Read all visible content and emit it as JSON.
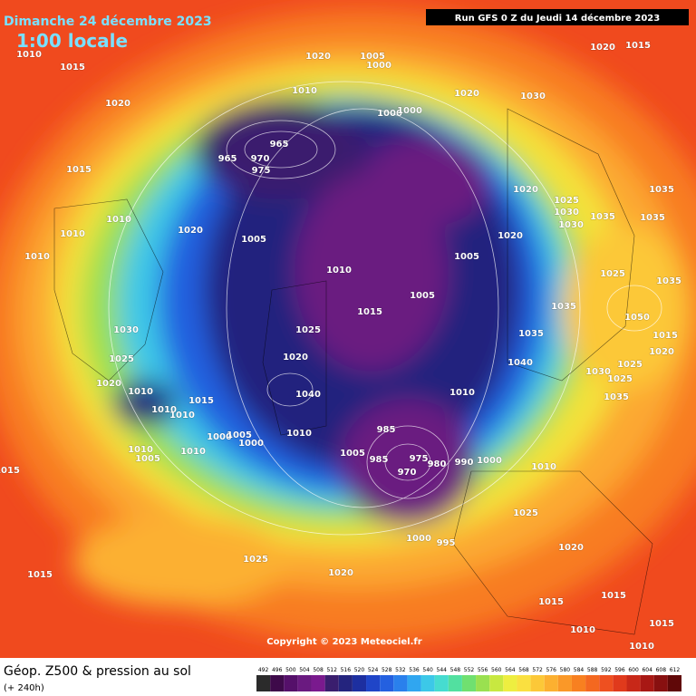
{
  "header": {
    "date": "Dimanche 24 décembre 2023",
    "time": "1:00 locale",
    "run": "Run GFS 0 Z du Jeudi 14 décembre 2023"
  },
  "footer": {
    "title": "Géop. Z500 & pression au sol",
    "lead": "(+ 240h)",
    "copyright": "Copyright © 2023 Meteociel.fr"
  },
  "colorbar": {
    "ticks": [
      492,
      496,
      500,
      504,
      508,
      512,
      516,
      520,
      524,
      528,
      532,
      536,
      540,
      544,
      548,
      552,
      556,
      560,
      564,
      568,
      572,
      576,
      580,
      584,
      588,
      592,
      596,
      600,
      604,
      608,
      612
    ],
    "colors": [
      "#2b2b2b",
      "#3e0a4a",
      "#55106a",
      "#6a1a80",
      "#7a1a8e",
      "#3a1e6e",
      "#24247e",
      "#1d2fa0",
      "#1f45c8",
      "#2460e0",
      "#2a80ec",
      "#30a6f0",
      "#3cc8e8",
      "#46dcd0",
      "#52e0a0",
      "#70e070",
      "#9ae050",
      "#c8e840",
      "#eeee40",
      "#fae040",
      "#fcc838",
      "#fcb030",
      "#fa9828",
      "#f88020",
      "#f46820",
      "#ee5020",
      "#e03a1c",
      "#c82818",
      "#a81814",
      "#881010",
      "#600808"
    ]
  },
  "isobar_labels": [
    "1010",
    "1015",
    "1020",
    "1020",
    "1005",
    "1000",
    "1020",
    "1015",
    "1010",
    "1020",
    "1030",
    "1000",
    "1000",
    "965",
    "965",
    "970",
    "975",
    "1015",
    "1010",
    "1010",
    "1020",
    "1005",
    "1010",
    "1010",
    "1005",
    "1020",
    "1020",
    "1025",
    "1030",
    "1030",
    "1035",
    "1035",
    "1035",
    "1025",
    "1035",
    "1050",
    "1015",
    "1020",
    "1005",
    "1015",
    "1025",
    "1020",
    "1030",
    "1025",
    "1020",
    "1010",
    "1010",
    "1015",
    "1010",
    "1040",
    "1010",
    "1000",
    "1005",
    "1000",
    "1010",
    "1005",
    "1010",
    "1015",
    "985",
    "985",
    "1005",
    "975",
    "980",
    "970",
    "990",
    "1000",
    "1010",
    "1010",
    "1040",
    "1035",
    "1035",
    "1030",
    "1025",
    "1035",
    "1025",
    "1000",
    "995",
    "1025",
    "1020",
    "1025",
    "1020",
    "1015",
    "1015",
    "1015",
    "1010",
    "1010",
    "1015"
  ]
}
